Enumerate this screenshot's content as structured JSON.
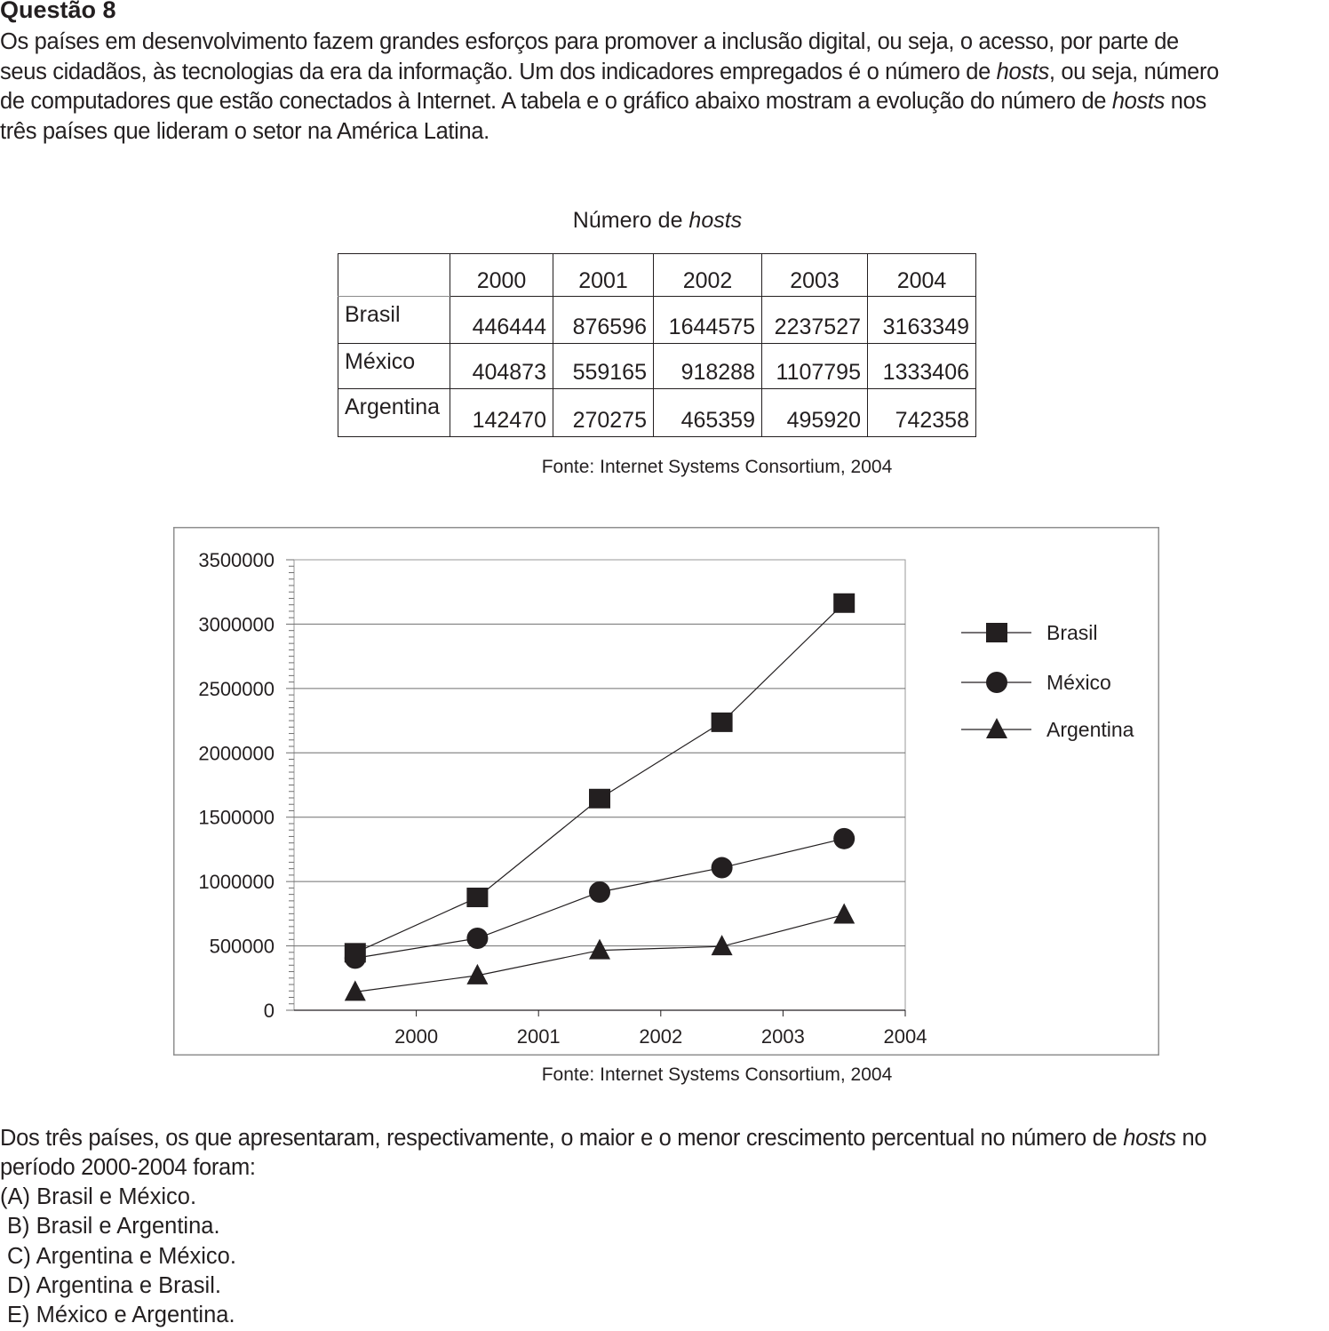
{
  "question": {
    "title": "Questão 8",
    "intro_lines": [
      [
        "Os países em desenvolvimento fazem grandes esforços para promover a inclusão digital, ou seja, o acesso, por parte de"
      ],
      [
        "seus cidadãos, às tecnologias da era da informação. Um dos indicadores empregados é o número de ",
        {
          "i": "hosts"
        },
        ", ou seja, número"
      ],
      [
        "de computadores que estão conectados à Internet. A tabela e o gráfico abaixo mostram a evolução do número de ",
        {
          "i": "hosts"
        },
        " nos"
      ],
      [
        "três países que lideram o setor na América Latina."
      ]
    ],
    "prompt_lines": [
      [
        "Dos três países, os que apresentaram, respectivamente, o maior e o menor crescimento percentual no número de ",
        {
          "i": "hosts"
        },
        " no"
      ],
      [
        "período 2000-2004 foram:"
      ]
    ],
    "options": [
      "(A) Brasil e México.",
      "B) Brasil e Argentina.",
      "C) Argentina e México.",
      "D) Argentina e Brasil.",
      "E) México e Argentina."
    ]
  },
  "table": {
    "title_prefix": "Número de ",
    "title_italic": "hosts",
    "years": [
      "2000",
      "2001",
      "2002",
      "2003",
      "2004"
    ],
    "rows": [
      {
        "country": "Brasil",
        "values": [
          "446444",
          "876596",
          "1644575",
          "2237527",
          "3163349"
        ]
      },
      {
        "country": "México",
        "values": [
          "404873",
          "559165",
          "918288",
          "1107795",
          "1333406"
        ]
      },
      {
        "country": "Argentina",
        "values": [
          "142470",
          "270275",
          "465359",
          "495920",
          "742358"
        ]
      }
    ],
    "source": "Fonte: Internet Systems Consortium, 2004"
  },
  "chart_data": {
    "type": "line",
    "title": "",
    "xlabel": "",
    "ylabel": "",
    "x_ticks": [
      "2000",
      "2001",
      "2002",
      "2003",
      "2004"
    ],
    "x": [
      1999.5,
      2000.5,
      2001.5,
      2002.5,
      2003.5
    ],
    "xlim": [
      1999,
      2004
    ],
    "ylim": [
      0,
      3500000
    ],
    "y_ticks": [
      "0",
      "500000",
      "1000000",
      "1500000",
      "2000000",
      "2500000",
      "3000000",
      "3500000"
    ],
    "y_tick_values": [
      0,
      500000,
      1000000,
      1500000,
      2000000,
      2500000,
      3000000,
      3500000
    ],
    "grid": true,
    "legend": "right",
    "series": [
      {
        "name": "Brasil",
        "marker": "square",
        "values": [
          446444,
          876596,
          1644575,
          2237527,
          3163349
        ]
      },
      {
        "name": "México",
        "marker": "circle",
        "values": [
          404873,
          559165,
          918288,
          1107795,
          1333406
        ]
      },
      {
        "name": "Argentina",
        "marker": "triangle",
        "values": [
          142470,
          270275,
          465359,
          495920,
          742358
        ]
      }
    ],
    "source": "Fonte: Internet Systems Consortium, 2004"
  }
}
